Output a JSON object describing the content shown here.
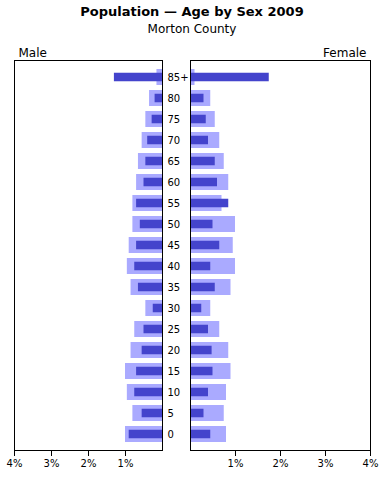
{
  "chart_data": [
    {
      "type": "bar",
      "orientation": "horizontal",
      "title": "Population — Age by Sex 2009",
      "subtitle": "Morton County",
      "annotations": [
        "Male"
      ],
      "categories": [
        "0",
        "5",
        "10",
        "15",
        "20",
        "25",
        "30",
        "35",
        "40",
        "45",
        "50",
        "55",
        "60",
        "65",
        "70",
        "75",
        "80",
        "85+"
      ],
      "series": [
        {
          "color": "#aaaaff",
          "values": [
            1.0,
            0.8,
            0.95,
            1.0,
            0.85,
            0.75,
            0.45,
            0.85,
            0.95,
            0.9,
            0.8,
            0.8,
            0.7,
            0.65,
            0.55,
            0.45,
            0.35,
            0.15
          ]
        },
        {
          "color": "#4444cc",
          "values": [
            0.9,
            0.55,
            0.75,
            0.7,
            0.55,
            0.5,
            0.25,
            0.65,
            0.75,
            0.7,
            0.6,
            0.7,
            0.5,
            0.45,
            0.4,
            0.28,
            0.2,
            1.3
          ]
        }
      ],
      "xlim": [
        4,
        0
      ],
      "xticks": [
        {
          "value": 4,
          "label": "4%"
        },
        {
          "value": 3,
          "label": "3%"
        },
        {
          "value": 2,
          "label": "2%"
        },
        {
          "value": 1,
          "label": "1%"
        }
      ]
    },
    {
      "type": "bar",
      "orientation": "horizontal",
      "annotations": [
        "Female"
      ],
      "categories": [
        "0",
        "5",
        "10",
        "15",
        "20",
        "25",
        "30",
        "35",
        "40",
        "45",
        "50",
        "55",
        "60",
        "65",
        "70",
        "75",
        "80",
        "85+"
      ],
      "series": [
        {
          "color": "#aaaaff",
          "values": [
            0.8,
            0.75,
            0.8,
            0.9,
            0.85,
            0.65,
            0.45,
            0.9,
            1.0,
            0.95,
            1.0,
            0.7,
            0.85,
            0.75,
            0.65,
            0.55,
            0.45,
            0.1
          ]
        },
        {
          "color": "#4444cc",
          "values": [
            0.45,
            0.3,
            0.4,
            0.5,
            0.48,
            0.4,
            0.25,
            0.55,
            0.45,
            0.65,
            0.5,
            0.85,
            0.6,
            0.55,
            0.4,
            0.35,
            0.3,
            1.75
          ]
        }
      ],
      "xlim": [
        0,
        4
      ],
      "xticks": [
        {
          "value": 1,
          "label": "1%"
        },
        {
          "value": 2,
          "label": "2%"
        },
        {
          "value": 3,
          "label": "3%"
        },
        {
          "value": 4,
          "label": "4%"
        }
      ]
    }
  ]
}
